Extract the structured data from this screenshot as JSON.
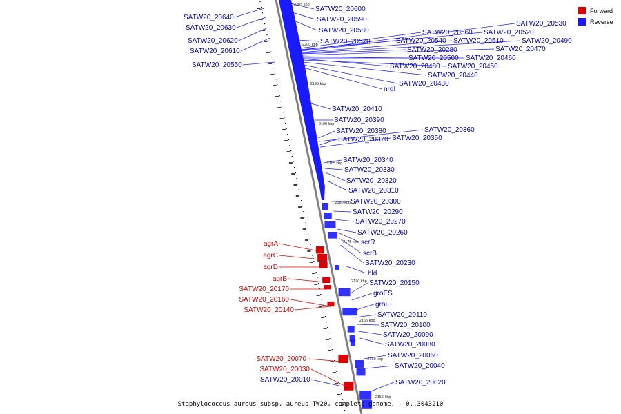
{
  "caption": "Staphylococcus aureus subsp. aureus TW20, complete genome. - 0..3043210",
  "legend": {
    "forward_label": "Forward",
    "reverse_label": "Reverse",
    "forward_color": "#dd0000",
    "reverse_color": "#1a1aff"
  },
  "colors": {
    "axis": "#808080",
    "tick": "#000000",
    "forward_label": "#cc0000",
    "reverse_label": "#0000bb"
  },
  "scale_marks": [
    "2205 kbp",
    "2200 kbp",
    "2195 kbp",
    "2190 kbp",
    "2185 kbp",
    "2180 kbp",
    "2175 kbp",
    "2170 kbp",
    "2165 kbp",
    "2160 kbp",
    "2155 kbp"
  ],
  "reverse_genes": [
    "SATW20_20600",
    "SATW20_20590",
    "SATW20_20580",
    "SATW20_20570",
    "SATW20_20560",
    "SATW20_20520",
    "SATW20_20530",
    "SATW20_20540",
    "SATW20_20510",
    "SATW20_20490",
    "SATW20_20280",
    "SATW20_20470",
    "SATW20_20500",
    "SATW20_20460",
    "SATW20_20480",
    "SATW20_20450",
    "SATW20_20440",
    "SATW20_20430",
    "nrdI",
    "SATW20_20410",
    "SATW20_20390",
    "SATW20_20380",
    "SATW20_20360",
    "SATW20_20370",
    "SATW20_20350",
    "SATW20_20340",
    "SATW20_20330",
    "SATW20_20320",
    "SATW20_20310",
    "SATW20_20300",
    "SATW20_20290",
    "SATW20_20270",
    "SATW20_20260",
    "scrR",
    "scrB",
    "SATW20_20230",
    "hld",
    "SATW20_20150",
    "groES",
    "groEL",
    "SATW20_20110",
    "SATW20_20100",
    "SATW20_20090",
    "SATW20_20080",
    "SATW20_20060",
    "SATW20_20040",
    "SATW20_20020"
  ],
  "left_reverse_genes": [
    "SATW20_20640",
    "SATW20_20630",
    "SATW20_20620",
    "SATW20_20610",
    "SATW20_20550",
    "SATW20_20010"
  ],
  "forward_genes": [
    "agrA",
    "agrC",
    "agrD",
    "agrB",
    "SATW20_20170",
    "SATW20_20160",
    "SATW20_20140",
    "SATW20_20070",
    "SATW20_20030"
  ]
}
